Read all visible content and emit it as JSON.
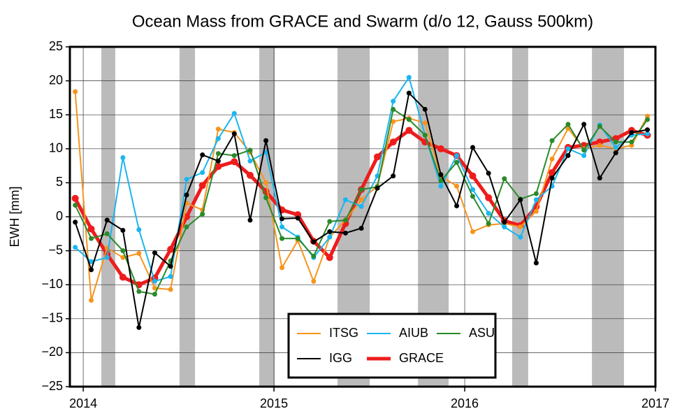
{
  "chart_data": {
    "type": "line",
    "title": "Ocean Mass from GRACE and Swarm (d/o 12, Gauss 500km)",
    "y_label": "EWH [mm]",
    "x": [
      2013.958,
      2014.042,
      2014.125,
      2014.208,
      2014.292,
      2014.375,
      2014.458,
      2014.542,
      2014.625,
      2014.708,
      2014.792,
      2014.875,
      2014.958,
      2015.042,
      2015.125,
      2015.208,
      2015.292,
      2015.375,
      2015.458,
      2015.542,
      2015.625,
      2015.708,
      2015.792,
      2015.875,
      2015.958,
      2016.042,
      2016.125,
      2016.208,
      2016.292,
      2016.375,
      2016.458,
      2016.542,
      2016.625,
      2016.708,
      2016.792,
      2016.875,
      2016.958
    ],
    "series": [
      {
        "name": "ITSG",
        "color": "#f7941d",
        "width": 2,
        "values": [
          18.4,
          -12.3,
          -4.6,
          -6.0,
          -5.4,
          -10.5,
          -10.7,
          2,
          1,
          12.9,
          12.4,
          9.5,
          5,
          -7.5,
          -3.5,
          -9.5,
          -3,
          -0.5,
          2.5,
          4.5,
          14,
          14.5,
          13.8,
          6,
          4.5,
          -2.2,
          -1.2,
          -1,
          -1.5,
          0.8,
          8.5,
          13,
          10,
          10.5,
          10,
          10.5,
          14.8
        ]
      },
      {
        "name": "AIUB",
        "color": "#1ab6ef",
        "width": 2,
        "values": [
          -4.5,
          -6.6,
          -6,
          8.7,
          -1.9,
          -9.5,
          -8.8,
          5.5,
          6.5,
          11.5,
          15.2,
          8.2,
          9.5,
          -1.5,
          -3,
          -6,
          -3,
          2.5,
          1.5,
          6,
          17,
          20.5,
          12,
          4.5,
          9,
          4,
          0.5,
          -1.5,
          -3,
          2.5,
          4.5,
          10,
          9,
          13.5,
          10.2,
          12,
          12.2
        ]
      },
      {
        "name": "ASU",
        "color": "#2a8a2a",
        "width": 2,
        "values": [
          1.7,
          -3.2,
          -2.5,
          -5,
          -11,
          -11.4,
          -6.5,
          -1.5,
          0.4,
          9.3,
          9,
          9.8,
          2.8,
          -3.2,
          -3.2,
          -5.8,
          -0.7,
          -0.5,
          4,
          4.4,
          15.8,
          14.3,
          12,
          5.3,
          8,
          3,
          -1,
          5.6,
          2.6,
          3.4,
          11.2,
          13.6,
          9.8,
          13.3,
          11,
          11,
          14.3
        ]
      },
      {
        "name": "IGG",
        "color": "#000000",
        "width": 2,
        "values": [
          -0.8,
          -7.8,
          -0.5,
          -2,
          -16.3,
          -5.3,
          -7.3,
          3.2,
          9.1,
          8.2,
          12.2,
          -0.5,
          11.2,
          -0.3,
          -0.2,
          -3.7,
          -2.2,
          -2.4,
          -1.7,
          4.2,
          6,
          18.2,
          15.8,
          6.2,
          1.6,
          10.2,
          6.4,
          -0.8,
          2.5,
          -6.8,
          5.7,
          9,
          13.6,
          5.7,
          9.4,
          12.4,
          12.8
        ]
      },
      {
        "name": "GRACE",
        "color": "#ee1c1c",
        "width": 5,
        "values": [
          2.7,
          -1.8,
          -5.5,
          -8.9,
          -10,
          -9,
          -4.8,
          0,
          4.6,
          7.4,
          8.1,
          6.1,
          3.7,
          1,
          0.3,
          -3.6,
          -6,
          -1,
          4,
          8.8,
          11,
          12.7,
          11,
          10,
          9,
          6,
          2.8,
          -0.6,
          -1.3,
          1.5,
          6.5,
          10.2,
          10.5,
          11,
          11.5,
          12.7,
          12
        ]
      }
    ],
    "shaded_intervals": [
      [
        2014.095,
        2014.168
      ],
      [
        2014.505,
        2014.586
      ],
      [
        2014.923,
        2015.004
      ],
      [
        2015.333,
        2015.502
      ],
      [
        2015.755,
        2015.916
      ],
      [
        2016.249,
        2016.333
      ],
      [
        2016.667,
        2016.835
      ]
    ],
    "shade_color": "#bbbbbb",
    "xlim": [
      2013.93,
      2017.0
    ],
    "xticks": [
      2014,
      2015,
      2016,
      2017
    ],
    "ylim": [
      -25,
      25
    ],
    "yticks": [
      {
        "value": -25,
        "label": "−25"
      },
      {
        "value": -20,
        "label": "−20"
      },
      {
        "value": -15,
        "label": "−15"
      },
      {
        "value": -10,
        "label": "−10"
      },
      {
        "value": -5,
        "label": "−5"
      },
      0,
      5,
      10,
      15,
      20,
      25
    ],
    "grid": true,
    "legend": "lower right"
  }
}
